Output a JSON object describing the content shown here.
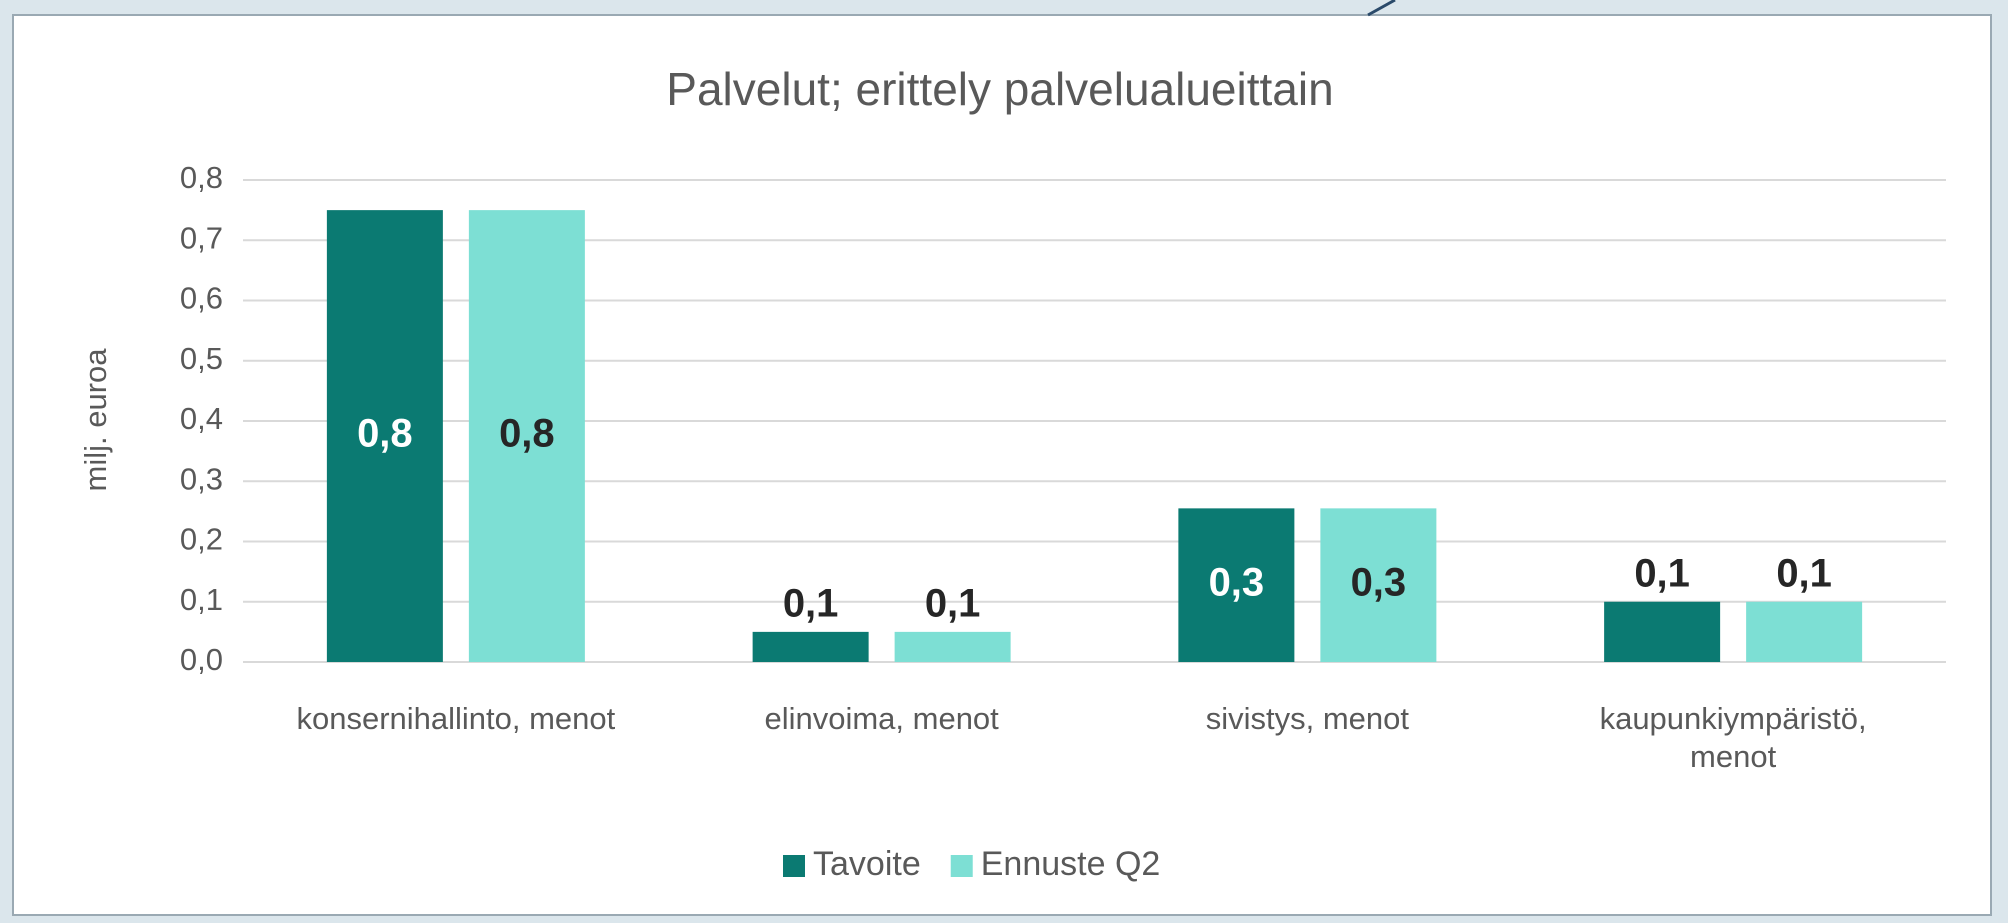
{
  "chart_data": {
    "type": "bar",
    "title": "Palvelut; erittely palvelualueittain",
    "ylabel": "milj. euroa",
    "categories": [
      "konsernihallinto, menot",
      "elinvoima, menot",
      "sivistys, menot",
      "kaupunkiympäristö, menot"
    ],
    "series": [
      {
        "name": "Tavoite",
        "color": "#0b7a72",
        "values": [
          0.75,
          0.05,
          0.255,
          0.1
        ],
        "value_labels": [
          "0,8",
          "0,1",
          "0,3",
          "0,1"
        ]
      },
      {
        "name": "Ennuste Q2",
        "color": "#7ddfd4",
        "values": [
          0.75,
          0.05,
          0.255,
          0.1
        ],
        "value_labels": [
          "0,8",
          "0,1",
          "0,3",
          "0,1"
        ]
      }
    ],
    "ylim": [
      0,
      0.8
    ],
    "yticks": [
      {
        "value": 0,
        "label": "0,0"
      },
      {
        "value": 0.1,
        "label": "0,1"
      },
      {
        "value": 0.2,
        "label": "0,2"
      },
      {
        "value": 0.3,
        "label": "0,3"
      },
      {
        "value": 0.4,
        "label": "0,4"
      },
      {
        "value": 0.5,
        "label": "0,5"
      },
      {
        "value": 0.6,
        "label": "0,6"
      },
      {
        "value": 0.7,
        "label": "0,7"
      },
      {
        "value": 0.8,
        "label": "0,8"
      }
    ],
    "grid": true,
    "legend": "bottom"
  }
}
